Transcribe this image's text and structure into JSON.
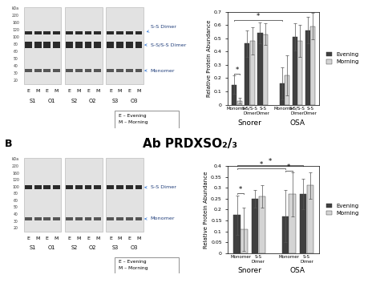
{
  "blots": [
    {
      "kda": [
        "kDa",
        "220",
        "160",
        "120",
        "100",
        "80",
        "60",
        "50",
        "40",
        "30",
        "20"
      ],
      "samples": [
        [
          "S1",
          "O1"
        ],
        [
          "S2",
          "O2"
        ],
        [
          "S3",
          "O3"
        ]
      ],
      "lanes": [
        "E",
        "M",
        "E",
        "M"
      ],
      "bands": [
        "S-S Dimer",
        "S-S/S-S Dimer",
        "Monomer"
      ],
      "key": [
        "E – Evening",
        "M – Morning"
      ]
    },
    {
      "kda": [
        "kDa",
        "220",
        "160",
        "120",
        "100",
        "80",
        "60",
        "50",
        "40",
        "30",
        "20"
      ],
      "samples": [
        [
          "S1",
          "O1"
        ],
        [
          "S2",
          "O2"
        ],
        [
          "S3",
          "O3"
        ]
      ],
      "lanes": [
        "E",
        "M",
        "E",
        "M"
      ],
      "bands": [
        "S-S Dimer",
        "Monomer"
      ],
      "key": [
        "E – Evening",
        "M – Morning"
      ]
    }
  ],
  "panel_b": {
    "label": "B",
    "title": "Ab PRDXSO₂/₃"
  },
  "chart_data": [
    {
      "type": "bar",
      "ylabel": "Relative Protein Abundance",
      "categories": [
        "Monomer",
        "S-S/S-S Dimer",
        "S-S Dimer",
        "Monomer",
        "S-S/S-S Dimer",
        "S-S Dimer"
      ],
      "groups": [
        "Snorer",
        "OSA"
      ],
      "series": [
        {
          "name": "Evening",
          "color": "#404040",
          "values": [
            0.15,
            0.46,
            0.54,
            0.16,
            0.51,
            0.56
          ],
          "errors": [
            0.07,
            0.1,
            0.08,
            0.12,
            0.1,
            0.1
          ]
        },
        {
          "name": "Morning",
          "color": "#d4d4d4",
          "values": [
            0.03,
            0.48,
            0.53,
            0.22,
            0.48,
            0.59
          ],
          "errors": [
            0.02,
            0.1,
            0.08,
            0.15,
            0.12,
            0.1
          ]
        }
      ],
      "ylim": [
        0,
        0.7
      ],
      "yticks": [
        0,
        0.1,
        0.2,
        0.3,
        0.4,
        0.5,
        0.6,
        0.7
      ],
      "legend": "right",
      "significance": [
        {
          "from": [
            0,
            0
          ],
          "to": [
            0,
            1
          ],
          "label": "*"
        },
        {
          "from": [
            0,
            0
          ],
          "to": [
            3,
            0
          ],
          "label": "*"
        }
      ]
    },
    {
      "type": "bar",
      "ylabel": "Relative Protein Abundance",
      "categories": [
        "Monomer",
        "S-S Dimer",
        "Monomer",
        "S-S Dimer"
      ],
      "groups": [
        "Snorer",
        "OSA"
      ],
      "series": [
        {
          "name": "Evening",
          "color": "#404040",
          "values": [
            0.175,
            0.25,
            0.17,
            0.27
          ],
          "errors": [
            0.09,
            0.04,
            0.12,
            0.07
          ]
        },
        {
          "name": "Morning",
          "color": "#d4d4d4",
          "values": [
            0.11,
            0.26,
            0.27,
            0.31
          ],
          "errors": [
            0.1,
            0.05,
            0.1,
            0.06
          ]
        }
      ],
      "ylim": [
        0,
        0.4
      ],
      "yticks": [
        0,
        0.05,
        0.1,
        0.15,
        0.2,
        0.25,
        0.3,
        0.35,
        0.4
      ],
      "legend": "right",
      "significance": [
        {
          "from": [
            0,
            0
          ],
          "to": [
            0,
            1
          ],
          "label": "*"
        },
        {
          "from": [
            2,
            0
          ],
          "to": [
            2,
            1
          ],
          "label": "*"
        },
        {
          "from": [
            0,
            0
          ],
          "to": [
            2,
            0
          ],
          "label": "*"
        },
        {
          "from": [
            0,
            0
          ],
          "to": [
            3,
            0
          ],
          "label": "*"
        }
      ]
    }
  ]
}
